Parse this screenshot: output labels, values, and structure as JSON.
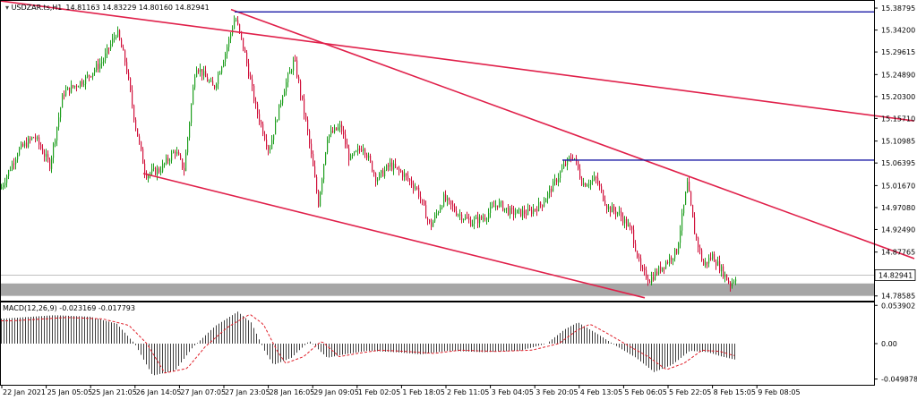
{
  "chart_data": {
    "type": "candlestick",
    "title": "USDZAR.ts,H1",
    "ohlc_header": "14.81163 14.83229 14.80160 14.82941",
    "current_price": 14.82941,
    "price_ticks": [
      "15.38795",
      "15.34200",
      "15.29615",
      "15.24890",
      "15.20300",
      "15.15710",
      "15.10985",
      "15.06395",
      "15.01670",
      "14.97080",
      "14.92490",
      "14.87765",
      "14.78585"
    ],
    "price_tick_values": [
      15.38795,
      15.342,
      15.29615,
      15.2489,
      15.203,
      15.1571,
      15.10985,
      15.06395,
      15.0167,
      14.9708,
      14.9249,
      14.87765,
      14.78585
    ],
    "ylim": [
      14.776,
      15.403
    ],
    "time_labels": [
      "22 Jan 2021",
      "25 Jan 05:05",
      "25 Jan 21:05",
      "26 Jan 14:05",
      "27 Jan 07:05",
      "27 Jan 23:05",
      "28 Jan 16:05",
      "29 Jan 09:05",
      "1 Feb 02:05",
      "1 Feb 18:05",
      "2 Feb 11:05",
      "3 Feb 04:05",
      "3 Feb 20:05",
      "4 Feb 13:05",
      "5 Feb 06:05",
      "5 Feb 22:05",
      "8 Feb 15:05",
      "9 Feb 08:05"
    ],
    "horizontal_levels": [
      15.38,
      15.07
    ],
    "support_zone": [
      14.786,
      14.812
    ],
    "trendlines": [
      {
        "from": {
          "bar": -8,
          "price": 15.405
        },
        "to": {
          "bar": 1021,
          "price": 15.152
        }
      },
      {
        "from": {
          "bar": 258,
          "price": 15.385
        },
        "to": {
          "bar": 1021,
          "price": 14.864
        }
      },
      {
        "from": {
          "bar": 160,
          "price": 15.042
        },
        "to": {
          "bar": 720,
          "price": 14.782
        }
      }
    ],
    "path": [
      [
        0,
        15.01
      ],
      [
        20,
        15.09
      ],
      [
        38,
        15.12
      ],
      [
        55,
        15.06
      ],
      [
        70,
        15.21
      ],
      [
        95,
        15.24
      ],
      [
        115,
        15.28
      ],
      [
        130,
        15.34
      ],
      [
        140,
        15.27
      ],
      [
        150,
        15.15
      ],
      [
        162,
        15.04
      ],
      [
        178,
        15.05
      ],
      [
        195,
        15.09
      ],
      [
        205,
        15.05
      ],
      [
        218,
        15.27
      ],
      [
        238,
        15.22
      ],
      [
        252,
        15.3
      ],
      [
        262,
        15.37
      ],
      [
        272,
        15.3
      ],
      [
        285,
        15.18
      ],
      [
        300,
        15.09
      ],
      [
        315,
        15.21
      ],
      [
        328,
        15.28
      ],
      [
        342,
        15.14
      ],
      [
        355,
        14.98
      ],
      [
        365,
        15.12
      ],
      [
        380,
        15.14
      ],
      [
        390,
        15.07
      ],
      [
        405,
        15.1
      ],
      [
        420,
        15.03
      ],
      [
        435,
        15.06
      ],
      [
        450,
        15.04
      ],
      [
        465,
        15.01
      ],
      [
        480,
        14.93
      ],
      [
        495,
        14.99
      ],
      [
        510,
        14.96
      ],
      [
        525,
        14.94
      ],
      [
        540,
        14.95
      ],
      [
        555,
        14.98
      ],
      [
        570,
        14.96
      ],
      [
        590,
        14.96
      ],
      [
        605,
        14.98
      ],
      [
        618,
        15.02
      ],
      [
        630,
        15.06
      ],
      [
        640,
        15.08
      ],
      [
        650,
        15.02
      ],
      [
        665,
        15.03
      ],
      [
        678,
        14.97
      ],
      [
        690,
        14.96
      ],
      [
        705,
        14.92
      ],
      [
        715,
        14.84
      ],
      [
        725,
        14.82
      ],
      [
        740,
        14.85
      ],
      [
        755,
        14.88
      ],
      [
        767,
        15.02
      ],
      [
        775,
        14.92
      ],
      [
        785,
        14.85
      ],
      [
        795,
        14.87
      ],
      [
        805,
        14.84
      ],
      [
        815,
        14.81
      ],
      [
        822,
        14.83
      ]
    ],
    "macd": {
      "label": "MACD(12,26,9) -0.023169 -0.017793",
      "ticks": [
        "0.053902",
        "0.00",
        "-0.049878"
      ],
      "tick_values": [
        0.053902,
        0,
        -0.049878
      ],
      "ylim": [
        -0.058,
        0.058
      ],
      "path": [
        [
          0,
          0.035
        ],
        [
          60,
          0.04
        ],
        [
          100,
          0.038
        ],
        [
          130,
          0.028
        ],
        [
          150,
          0.0
        ],
        [
          170,
          -0.045
        ],
        [
          195,
          -0.038
        ],
        [
          215,
          -0.005
        ],
        [
          240,
          0.025
        ],
        [
          265,
          0.045
        ],
        [
          280,
          0.03
        ],
        [
          295,
          -0.01
        ],
        [
          305,
          -0.03
        ],
        [
          325,
          -0.02
        ],
        [
          345,
          0.004
        ],
        [
          365,
          -0.02
        ],
        [
          385,
          -0.015
        ],
        [
          410,
          -0.01
        ],
        [
          440,
          -0.012
        ],
        [
          470,
          -0.015
        ],
        [
          500,
          -0.01
        ],
        [
          540,
          -0.012
        ],
        [
          580,
          -0.01
        ],
        [
          610,
          0.0
        ],
        [
          630,
          0.02
        ],
        [
          645,
          0.03
        ],
        [
          665,
          0.015
        ],
        [
          690,
          -0.005
        ],
        [
          710,
          -0.02
        ],
        [
          730,
          -0.04
        ],
        [
          750,
          -0.03
        ],
        [
          770,
          -0.01
        ],
        [
          790,
          -0.012
        ],
        [
          805,
          -0.018
        ],
        [
          822,
          -0.023
        ]
      ]
    }
  }
}
